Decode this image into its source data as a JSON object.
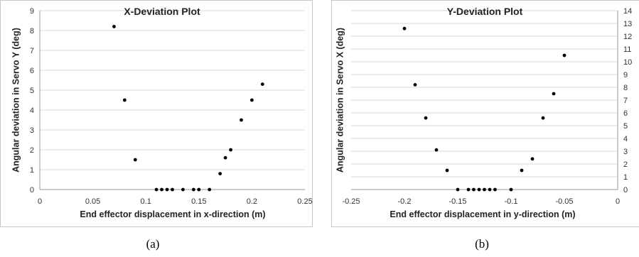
{
  "chart_data": [
    {
      "type": "scatter",
      "title": "X-Deviation Plot",
      "xlabel": "End effector displacement in x-direction (m)",
      "ylabel": "Angular deviation in Servo Y (deg)",
      "xlim": [
        0,
        0.25
      ],
      "ylim": [
        0,
        9
      ],
      "xticks": [
        0,
        0.05,
        0.1,
        0.15,
        0.2,
        0.25
      ],
      "xtick_labels": [
        "0",
        "0.05",
        "0.1",
        "0.15",
        "0.2",
        "0.25"
      ],
      "yticks": [
        0,
        1,
        2,
        3,
        4,
        5,
        6,
        7,
        8,
        9
      ],
      "ytick_labels": [
        "0",
        "1",
        "2",
        "3",
        "4",
        "5",
        "6",
        "7",
        "8",
        "9"
      ],
      "y_axis_side": "left",
      "grid": true,
      "points": [
        {
          "x": 0.07,
          "y": 8.2
        },
        {
          "x": 0.08,
          "y": 4.5
        },
        {
          "x": 0.09,
          "y": 1.5
        },
        {
          "x": 0.11,
          "y": 0
        },
        {
          "x": 0.115,
          "y": 0
        },
        {
          "x": 0.12,
          "y": 0
        },
        {
          "x": 0.125,
          "y": 0
        },
        {
          "x": 0.135,
          "y": 0
        },
        {
          "x": 0.145,
          "y": 0
        },
        {
          "x": 0.15,
          "y": 0
        },
        {
          "x": 0.16,
          "y": 0
        },
        {
          "x": 0.17,
          "y": 0.8
        },
        {
          "x": 0.175,
          "y": 1.6
        },
        {
          "x": 0.18,
          "y": 2.0
        },
        {
          "x": 0.19,
          "y": 3.5
        },
        {
          "x": 0.2,
          "y": 4.5
        },
        {
          "x": 0.21,
          "y": 5.3
        }
      ]
    },
    {
      "type": "scatter",
      "title": "Y-Deviation Plot",
      "xlabel": "End effector displacement in y-direction (m)",
      "ylabel": "Angular deviation in Servo X (deg)",
      "xlim": [
        -0.25,
        0
      ],
      "ylim": [
        0,
        14
      ],
      "xticks": [
        -0.25,
        -0.2,
        -0.15,
        -0.1,
        -0.05,
        0
      ],
      "xtick_labels": [
        "-0.25",
        "-0.2",
        "-0.15",
        "-0.1",
        "-0.05",
        "0"
      ],
      "yticks": [
        0,
        1,
        2,
        3,
        4,
        5,
        6,
        7,
        8,
        9,
        10,
        11,
        12,
        13,
        14
      ],
      "ytick_labels": [
        "0",
        "1",
        "2",
        "3",
        "4",
        "5",
        "6",
        "7",
        "8",
        "9",
        "10",
        "11",
        "12",
        "13",
        "14"
      ],
      "y_axis_side": "right",
      "grid": true,
      "points": [
        {
          "x": -0.2,
          "y": 12.6
        },
        {
          "x": -0.19,
          "y": 8.2
        },
        {
          "x": -0.18,
          "y": 5.6
        },
        {
          "x": -0.17,
          "y": 3.1
        },
        {
          "x": -0.16,
          "y": 1.5
        },
        {
          "x": -0.15,
          "y": 0
        },
        {
          "x": -0.14,
          "y": 0
        },
        {
          "x": -0.135,
          "y": 0
        },
        {
          "x": -0.13,
          "y": 0
        },
        {
          "x": -0.125,
          "y": 0
        },
        {
          "x": -0.12,
          "y": 0
        },
        {
          "x": -0.115,
          "y": 0
        },
        {
          "x": -0.1,
          "y": 0
        },
        {
          "x": -0.09,
          "y": 1.5
        },
        {
          "x": -0.08,
          "y": 2.4
        },
        {
          "x": -0.07,
          "y": 5.6
        },
        {
          "x": -0.06,
          "y": 7.5
        },
        {
          "x": -0.05,
          "y": 10.5
        }
      ]
    }
  ],
  "captions": [
    "(a)",
    "(b)"
  ],
  "colors": {
    "grid": "#d9d9d9",
    "axis": "#9a9a9a",
    "marker": "#000000",
    "border": "#c8c8c8"
  }
}
